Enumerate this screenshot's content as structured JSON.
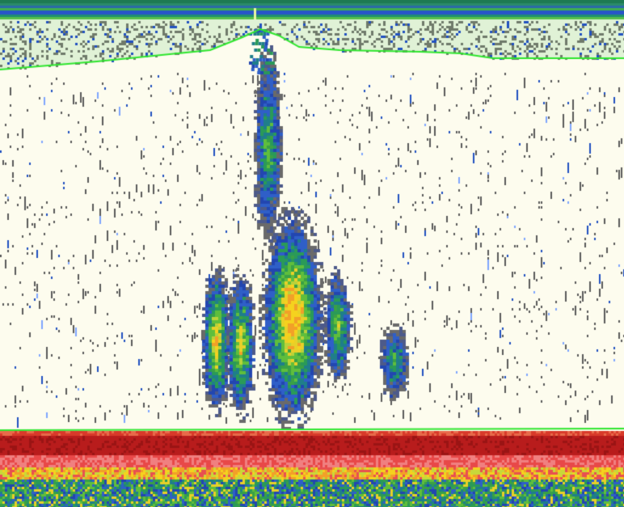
{
  "image": {
    "subject": "echogram",
    "colors": {
      "background": "#fdfcee",
      "surface_band": "#e0f2d6",
      "line": "#2ee62e",
      "bottom": "#b81c1c",
      "strong_echo": "#f0c020",
      "medium_echo": "#28a050",
      "weak_echo": "#2050c0",
      "noise": "#5a5a5a"
    }
  }
}
